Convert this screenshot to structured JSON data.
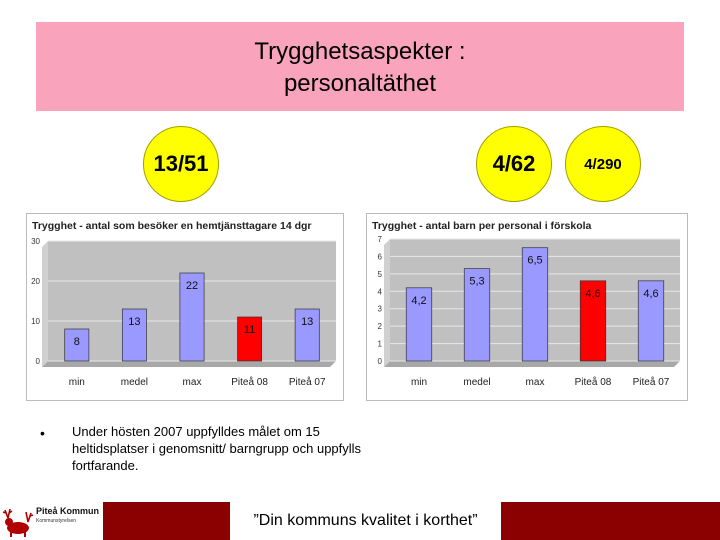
{
  "title": {
    "line1": "Trygghetsaspekter :",
    "line2": "personaltäthet"
  },
  "highlights": [
    {
      "value": "13/51",
      "color": "#ffff00"
    },
    {
      "value": "4/62",
      "color": "#ffff00"
    },
    {
      "value": "4/290",
      "color": "#ffff00"
    }
  ],
  "chart_data": [
    {
      "type": "bar",
      "title": "Trygghet - antal som besöker en hemtjänsttagare 14 dgr",
      "categories": [
        "min",
        "medel",
        "max",
        "Piteå 08",
        "Piteå 07"
      ],
      "values": [
        8,
        13,
        22,
        11,
        13
      ],
      "value_labels": [
        "8",
        "13",
        "22",
        "11",
        "13"
      ],
      "yticks": [
        "0",
        "10",
        "20",
        "30"
      ],
      "ylim": [
        0,
        30
      ],
      "bar_colors": [
        "#9999ff",
        "#9999ff",
        "#9999ff",
        "#ff0000",
        "#9999ff"
      ],
      "grid": true,
      "legend": false
    },
    {
      "type": "bar",
      "title": "Trygghet - antal barn per personal i förskola",
      "categories": [
        "min",
        "medel",
        "max",
        "Piteå 08",
        "Piteå 07"
      ],
      "values": [
        4.2,
        5.3,
        6.5,
        4.6,
        4.6
      ],
      "value_labels": [
        "4,2",
        "5,3",
        "6,5",
        "4,6",
        "4,6"
      ],
      "yticks": [
        "0",
        "1",
        "2",
        "3",
        "4",
        "5",
        "6",
        "7"
      ],
      "ylim": [
        0,
        7
      ],
      "bar_colors": [
        "#9999ff",
        "#9999ff",
        "#9999ff",
        "#ff0000",
        "#9999ff"
      ],
      "grid": true,
      "legend": false
    }
  ],
  "bullet": {
    "marker": "•",
    "text": "Under hösten 2007 uppfylldes målet om 15 heltidsplatser i genomsnitt/ barngrupp och uppfylls fortfarande."
  },
  "footer": {
    "logo_name": "Piteå Kommun",
    "logo_sub": "Kommunstyrelsen",
    "slogan": "”Din kommuns kvalitet i korthet”",
    "bar_color": "#8b0000"
  },
  "colors": {
    "title_bg": "#f9a3bd",
    "bar": "#9999ff",
    "bar_highlight": "#ff0000",
    "plot_bg": "#c0c0c0"
  }
}
